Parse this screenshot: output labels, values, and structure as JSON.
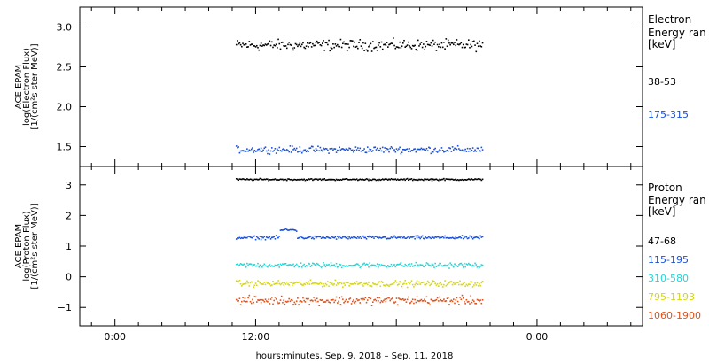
{
  "chart_data": [
    {
      "type": "scatter",
      "panel": "electron",
      "ylabel": [
        "ACE EPAM",
        "log(Electron Flux)",
        "[1/(cm²s ster MeV)]"
      ],
      "ylim": [
        1.25,
        3.25
      ],
      "yticks": [
        1.5,
        2.0,
        2.5,
        3.0
      ],
      "ytick_labels": [
        "1.5",
        "2.0",
        "2.5",
        "3.0"
      ],
      "legend_title": [
        "Electron",
        "Energy ran",
        "[keV]"
      ],
      "series": [
        {
          "name": "38-53",
          "color": "#000000",
          "level": 2.78,
          "spread": 0.05
        },
        {
          "name": "175-315",
          "color": "#1a4fd6",
          "level": 1.47,
          "spread": 0.03
        }
      ]
    },
    {
      "type": "scatter",
      "panel": "proton",
      "ylabel": [
        "ACE EPAM",
        "log(Proton Flux)",
        "[1/(cm²s ster MeV)]"
      ],
      "ylim": [
        -1.6,
        3.6
      ],
      "yticks": [
        -1,
        0,
        1,
        2,
        3
      ],
      "ytick_labels": [
        "−1",
        "0",
        "1",
        "2",
        "3"
      ],
      "legend_title": [
        "Proton",
        "Energy ran",
        "[keV]"
      ],
      "series": [
        {
          "name": "47-68",
          "color": "#000000",
          "level": 3.2,
          "spread": 0.02
        },
        {
          "name": "115-195",
          "color": "#1a4fd6",
          "level": 1.3,
          "spread": 0.04
        },
        {
          "name": "310-580",
          "color": "#22d6d6",
          "level": 0.4,
          "spread": 0.06
        },
        {
          "name": "795-1193",
          "color": "#d6d60f",
          "level": -0.2,
          "spread": 0.07
        },
        {
          "name": "1060-1900",
          "color": "#e0521a",
          "level": -0.75,
          "spread": 0.1
        }
      ]
    }
  ],
  "x_axis": {
    "xlim_hours": [
      -3,
      45
    ],
    "data_range_hours": [
      10.3,
      31.3
    ],
    "ticks": [
      {
        "hour": 0,
        "label": "0:00"
      },
      {
        "hour": 12,
        "label": "12:00"
      },
      {
        "hour": 24,
        "label": ""
      },
      {
        "hour": 36,
        "label": "0:00"
      }
    ],
    "xlabel": "hours:minutes, Sep.  9, 2018 – Sep. 11, 2018"
  }
}
